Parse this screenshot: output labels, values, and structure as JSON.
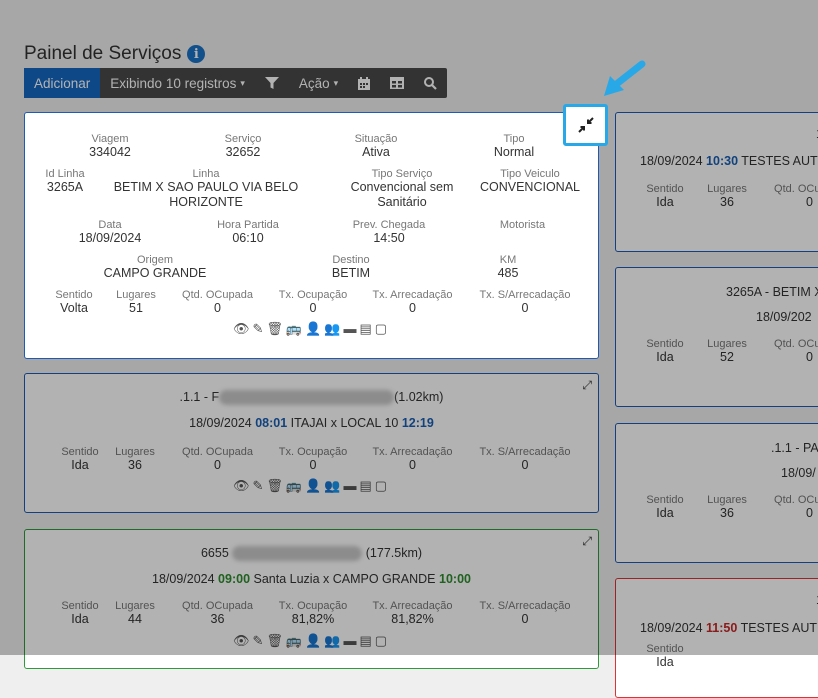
{
  "header": {
    "title": "Painel de Serviços",
    "info_icon": "info-icon"
  },
  "toolbar": {
    "add_label": "Adicionar",
    "display_label": "Exibindo 10 registros",
    "action_label": "Ação"
  },
  "detail_card": {
    "viagem": {
      "label": "Viagem",
      "value": "334042"
    },
    "servico": {
      "label": "Serviço",
      "value": "32652"
    },
    "situacao": {
      "label": "Situação",
      "value": "Ativa"
    },
    "tipo": {
      "label": "Tipo",
      "value": "Normal"
    },
    "id_linha": {
      "label": "Id Linha",
      "value": "3265A"
    },
    "linha": {
      "label": "Linha",
      "value": "BETIM X SAO PAULO VIA BELO HORIZONTE"
    },
    "tipo_servico": {
      "label": "Tipo Serviço",
      "value": "Convencional sem Sanitário"
    },
    "tipo_veiculo": {
      "label": "Tipo Veiculo",
      "value": "CONVENCIONAL"
    },
    "data": {
      "label": "Data",
      "value": "18/09/2024"
    },
    "hora_partida": {
      "label": "Hora Partida",
      "value": "06:10"
    },
    "prev_chegada": {
      "label": "Prev. Chegada",
      "value": "14:50"
    },
    "motorista": {
      "label": "Motorista",
      "value": ""
    },
    "origem": {
      "label": "Origem",
      "value": "CAMPO GRANDE"
    },
    "destino": {
      "label": "Destino",
      "value": "BETIM"
    },
    "km": {
      "label": "KM",
      "value": "485"
    },
    "sentido": {
      "label": "Sentido",
      "value": "Volta"
    },
    "lugares": {
      "label": "Lugares",
      "value": "51"
    },
    "qtd_ocupada": {
      "label": "Qtd. OCupada",
      "value": "0"
    },
    "tx_ocupacao": {
      "label": "Tx. Ocupação",
      "value": "0"
    },
    "tx_arrecadacao": {
      "label": "Tx. Arrecadação",
      "value": "0"
    },
    "tx_sarrecadacao": {
      "label": "Tx. S/Arrecadação",
      "value": "0"
    }
  },
  "labels": {
    "sentido": "Sentido",
    "lugares": "Lugares",
    "qtd_ocupada": "Qtd. OCupada",
    "tx_ocupacao": "Tx. Ocupação",
    "tx_arrecadacao": "Tx. Arrecadação",
    "tx_sarrecadacao": "Tx. S/Arrecadação"
  },
  "card2": {
    "title_prefix": ".1.1 - F",
    "title_suffix": "(1.02km)",
    "date": "18/09/2024",
    "depart": "08:01",
    "route": "ITAJAI x LOCAL 10",
    "arrive": "12:19",
    "sentido": "Ida",
    "lugares": "36",
    "qtd_ocupada": "0",
    "tx_ocupacao": "0",
    "tx_arrecadacao": "0",
    "tx_sarrecadacao": "0"
  },
  "card3": {
    "title_prefix": "6655",
    "title_suffix": "(177.5km)",
    "date": "18/09/2024",
    "depart": "09:00",
    "route": "Santa Luzia x CAMPO GRANDE",
    "arrive": "10:00",
    "sentido": "Ida",
    "lugares": "44",
    "qtd_ocupada": "36",
    "tx_ocupacao": "81,82%",
    "tx_arrecadacao": "81,82%",
    "tx_sarrecadacao": "0"
  },
  "right1": {
    "top": "1",
    "date": "18/09/2024",
    "depart": "10:30",
    "route": "TESTES AUT",
    "sentido": "Ida",
    "lugares": "36",
    "qtd_ocupada": "0"
  },
  "right2": {
    "top": "3265A - BETIM X",
    "date": "18/09/202",
    "sentido": "Ida",
    "lugares": "52",
    "qtd_ocupada": "0"
  },
  "right3": {
    "top": ".1.1 - PA",
    "date": "18/09/",
    "sentido": "Ida",
    "lugares": "36",
    "qtd_ocupada": "0"
  },
  "right4": {
    "top": "1",
    "date": "18/09/2024",
    "depart": "11:50",
    "route": "TESTES AUT",
    "sentido": "Ida"
  }
}
